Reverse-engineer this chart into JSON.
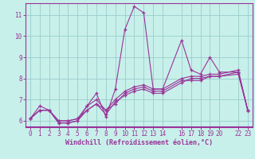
{
  "xlabel": "Windchill (Refroidissement éolien,°C)",
  "bg_color": "#c8f0ea",
  "line_color": "#993399",
  "grid_color": "#99cccc",
  "axis_color": "#993399",
  "bottom_bar_color": "#993399",
  "text_color": "#993399",
  "ylim": [
    5.7,
    11.55
  ],
  "xlim": [
    -0.5,
    23.5
  ],
  "xticks": [
    0,
    1,
    2,
    3,
    4,
    5,
    6,
    7,
    8,
    9,
    10,
    11,
    12,
    13,
    14,
    16,
    17,
    18,
    19,
    20,
    22,
    23
  ],
  "yticks": [
    6,
    7,
    8,
    9,
    10,
    11
  ],
  "series": [
    [
      6.1,
      6.7,
      6.5,
      5.9,
      5.9,
      6.0,
      6.7,
      7.3,
      6.2,
      7.5,
      10.3,
      11.4,
      11.1,
      7.5,
      7.5,
      9.8,
      8.4,
      8.2,
      9.0,
      8.3,
      8.3,
      6.5
    ],
    [
      6.1,
      6.5,
      6.5,
      6.0,
      6.0,
      6.1,
      6.5,
      6.8,
      6.5,
      6.8,
      7.3,
      7.5,
      7.6,
      7.4,
      7.4,
      7.9,
      7.9,
      7.9,
      8.1,
      8.1,
      8.2,
      6.5
    ],
    [
      6.1,
      6.5,
      6.5,
      5.9,
      5.9,
      6.0,
      6.5,
      6.8,
      6.3,
      6.9,
      7.2,
      7.4,
      7.5,
      7.3,
      7.3,
      7.8,
      8.0,
      8.0,
      8.1,
      8.1,
      8.3,
      6.5
    ],
    [
      6.1,
      6.5,
      6.5,
      6.0,
      6.0,
      6.1,
      6.7,
      7.0,
      6.5,
      7.0,
      7.4,
      7.6,
      7.7,
      7.5,
      7.5,
      8.0,
      8.1,
      8.1,
      8.2,
      8.2,
      8.4,
      6.5
    ]
  ],
  "x_positions": [
    0,
    1,
    2,
    3,
    4,
    5,
    6,
    7,
    8,
    9,
    10,
    11,
    12,
    13,
    14,
    16,
    17,
    18,
    19,
    20,
    22,
    23
  ],
  "tick_fontsize": 5.5,
  "xlabel_fontsize": 6.0,
  "xlabel_fontweight": "bold"
}
